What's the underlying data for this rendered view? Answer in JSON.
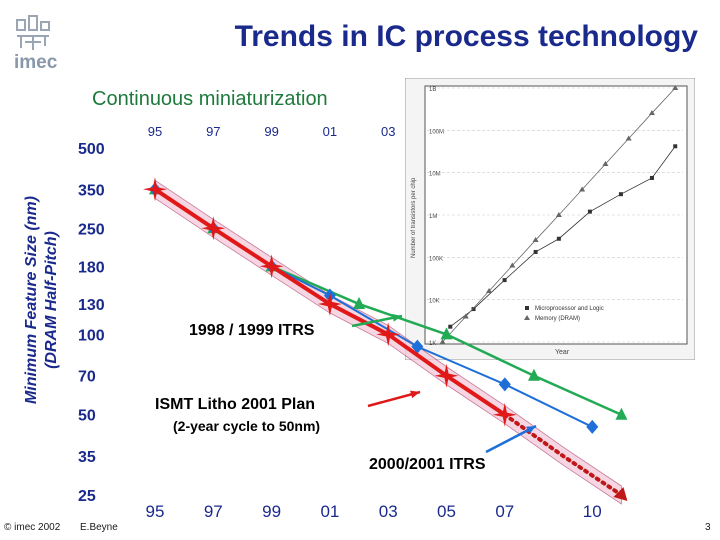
{
  "slide": {
    "title": "Trends in IC process technology",
    "subtitle": "Continuous miniaturization",
    "logo_text": "imec",
    "footer_left": "© imec 2002",
    "footer_author": "E.Beyne",
    "page_number": "3"
  },
  "colors": {
    "title": "#1a2a8c",
    "subtitle": "#1e7a3c",
    "series_1998_1999": "#22aa55",
    "series_ismt": "#e01818",
    "series_2000_2001": "#1f6fd8",
    "series_projection": "#c01818",
    "arrow_2000_2001": "#1f6fd8",
    "arrow_1998_1999": "#22aa55"
  },
  "chart_data": {
    "type": "line",
    "title": "",
    "ylabel": "Minimum Feature Size (nm)\n(DRAM Half-Pitch)",
    "ylabel_lines": [
      "Minimum Feature Size (nm)",
      "(DRAM Half-Pitch)"
    ],
    "yscale": "log",
    "ylim": [
      25,
      500
    ],
    "xlim": [
      1995,
      2011.5
    ],
    "y_ticks": [
      500,
      350,
      250,
      180,
      130,
      100,
      70,
      50,
      35,
      25
    ],
    "x_ticks_top": [
      {
        "x": 1995,
        "label": "95"
      },
      {
        "x": 1997,
        "label": "97"
      },
      {
        "x": 1999,
        "label": "99"
      },
      {
        "x": 2001,
        "label": "01"
      },
      {
        "x": 2003,
        "label": "03"
      }
    ],
    "x_ticks_bottom": [
      {
        "x": 1995,
        "label": "95"
      },
      {
        "x": 1997,
        "label": "97"
      },
      {
        "x": 1999,
        "label": "99"
      },
      {
        "x": 2001,
        "label": "01"
      },
      {
        "x": 2003,
        "label": "03"
      },
      {
        "x": 2005,
        "label": "05"
      },
      {
        "x": 2007,
        "label": "07"
      },
      {
        "x": 2010,
        "label": "10"
      }
    ],
    "series": [
      {
        "name": "1998 / 1999 ITRS",
        "marker": "triangle",
        "x": [
          1995,
          1997,
          1999,
          2002,
          2005,
          2008,
          2011
        ],
        "y": [
          350,
          250,
          180,
          130,
          100,
          70,
          50
        ]
      },
      {
        "name": "2000/2001 ITRS",
        "marker": "diamond",
        "x": [
          1995,
          1997,
          1999,
          2001,
          2004,
          2007,
          2010
        ],
        "y": [
          350,
          250,
          180,
          140,
          90,
          65,
          45
        ]
      },
      {
        "name": "ISMT Litho 2001 Plan",
        "marker": "star",
        "x": [
          1995,
          1997,
          1999,
          2001,
          2003,
          2005,
          2007
        ],
        "y": [
          350,
          250,
          180,
          130,
          100,
          70,
          50
        ]
      },
      {
        "name": "(2-year cycle to 50nm)",
        "marker": "none",
        "style": "dotted",
        "x": [
          2007,
          2009,
          2011
        ],
        "y": [
          50,
          35,
          25
        ]
      }
    ],
    "annotations": [
      {
        "text": "1998 / 1999 ITRS",
        "color": "#1e7a3c"
      },
      {
        "text": "ISMT Litho 2001 Plan",
        "color": "#c01818"
      },
      {
        "text": "(2-year cycle to 50nm)",
        "color": "#c01818"
      },
      {
        "text": "2000/2001 ITRS",
        "color": "#1a2a8c"
      }
    ],
    "inset": {
      "type": "scatter",
      "yscale": "log",
      "ylabel": "Number of transistors per chip",
      "xlabel": "Year",
      "y_ticks": [
        "1B",
        "100M",
        "10M",
        "1M",
        "100K",
        "10K",
        "1K"
      ],
      "legend": [
        "Microprocessor and Logic",
        "Memory (DRAM)"
      ],
      "series": [
        {
          "name": "Microprocessor and Logic",
          "x": [
            1971,
            1974,
            1978,
            1982,
            1985,
            1989,
            1993,
            1997,
            2000
          ],
          "y": [
            2300,
            6000,
            29000,
            134000,
            275000,
            1200000,
            3100000,
            7500000,
            42000000
          ]
        },
        {
          "name": "Memory (DRAM)",
          "x": [
            1970,
            1973,
            1976,
            1979,
            1982,
            1985,
            1988,
            1991,
            1994,
            1997,
            2000
          ],
          "y": [
            1000,
            4000,
            16000,
            64000,
            256000,
            1000000,
            4000000,
            16000000,
            64000000,
            256000000,
            1000000000
          ]
        }
      ]
    }
  }
}
